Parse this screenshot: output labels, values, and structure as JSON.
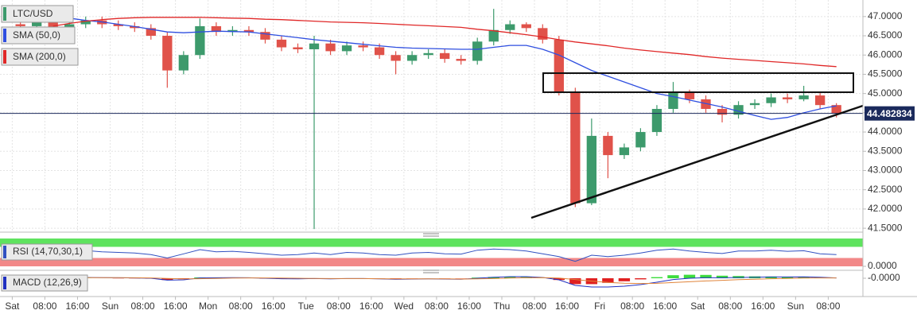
{
  "chart_data": [
    {
      "type": "candlestick",
      "title": "LTC/USD",
      "x": [
        2,
        6,
        10,
        14,
        18,
        22,
        26,
        30,
        34,
        38,
        42,
        46,
        50,
        54,
        58,
        62,
        66,
        70,
        74,
        78,
        82,
        86,
        90,
        94,
        98,
        102,
        106,
        110,
        114,
        118,
        122,
        126,
        130,
        134,
        138,
        142,
        146,
        150,
        154,
        158,
        162,
        166,
        170,
        174,
        178,
        182,
        186,
        190,
        194,
        198,
        202
      ],
      "open": [
        46.8,
        46.75,
        46.85,
        46.7,
        46.8,
        46.9,
        46.8,
        46.75,
        46.7,
        46.5,
        45.6,
        46.0,
        46.75,
        46.6,
        46.65,
        46.6,
        46.4,
        46.2,
        46.15,
        46.3,
        46.1,
        46.25,
        46.2,
        46.0,
        45.85,
        46.0,
        46.05,
        45.9,
        45.85,
        46.35,
        46.65,
        46.8,
        46.7,
        46.4,
        45.05,
        42.15,
        43.9,
        43.4,
        43.6,
        44.0,
        44.6,
        45.05,
        44.85,
        44.6,
        44.45,
        44.7,
        44.75,
        44.9,
        44.85,
        44.95,
        44.7
      ],
      "high": [
        46.9,
        46.95,
        46.95,
        46.85,
        47.0,
        47.0,
        46.9,
        46.85,
        46.8,
        46.6,
        46.1,
        46.95,
        46.85,
        46.75,
        46.75,
        46.7,
        46.5,
        46.3,
        46.5,
        46.4,
        46.35,
        46.35,
        46.3,
        46.1,
        46.1,
        46.15,
        46.15,
        46.0,
        46.45,
        47.2,
        46.9,
        46.85,
        46.8,
        46.5,
        45.15,
        44.35,
        44.0,
        43.7,
        44.1,
        44.7,
        45.3,
        45.1,
        44.95,
        44.7,
        44.8,
        44.85,
        45.0,
        45.0,
        45.2,
        45.05,
        44.75
      ],
      "low": [
        46.65,
        46.65,
        46.6,
        46.6,
        46.7,
        46.7,
        46.65,
        46.6,
        46.4,
        45.15,
        45.5,
        45.9,
        46.5,
        46.5,
        46.5,
        46.3,
        46.1,
        46.05,
        41.48,
        46.0,
        46.0,
        46.1,
        45.9,
        45.5,
        45.75,
        45.9,
        45.8,
        45.75,
        45.75,
        46.25,
        46.55,
        46.6,
        46.3,
        44.95,
        42.05,
        42.1,
        42.8,
        43.3,
        43.5,
        43.9,
        44.5,
        44.75,
        44.5,
        44.25,
        44.35,
        44.6,
        44.65,
        44.75,
        44.8,
        44.6,
        44.38
      ],
      "close": [
        46.75,
        46.85,
        46.7,
        46.8,
        46.9,
        46.8,
        46.75,
        46.7,
        46.5,
        45.6,
        46.0,
        46.75,
        46.6,
        46.65,
        46.6,
        46.4,
        46.2,
        46.15,
        46.3,
        46.1,
        46.25,
        46.2,
        46.0,
        45.85,
        46.0,
        46.05,
        45.9,
        45.85,
        46.35,
        46.65,
        46.8,
        46.7,
        46.4,
        45.05,
        42.15,
        43.9,
        43.4,
        43.6,
        44.0,
        44.6,
        45.05,
        44.85,
        44.6,
        44.45,
        44.7,
        44.75,
        44.9,
        44.85,
        44.95,
        44.7,
        44.48
      ],
      "up_color": "#3d9a6c",
      "down_color": "#e0524a",
      "title_color": "#3d9a6c",
      "overlays": [
        {
          "name": "SMA (50,0)",
          "color": "#2f4fe0",
          "values": [
            47.15,
            47.08,
            47.02,
            46.96,
            46.9,
            46.86,
            46.8,
            46.74,
            46.67,
            46.6,
            46.58,
            46.6,
            46.62,
            46.61,
            46.6,
            46.55,
            46.5,
            46.45,
            46.4,
            46.36,
            46.32,
            46.28,
            46.24,
            46.2,
            46.18,
            46.17,
            46.16,
            46.15,
            46.15,
            46.2,
            46.25,
            46.25,
            46.15,
            46.0,
            45.8,
            45.6,
            45.45,
            45.3,
            45.15,
            45.0,
            44.92,
            44.83,
            44.74,
            44.65,
            44.54,
            44.43,
            44.33,
            44.38,
            44.5,
            44.6,
            44.68
          ]
        },
        {
          "name": "SMA (200,0)",
          "color": "#e02828",
          "values": [
            null,
            null,
            46.75,
            46.82,
            46.88,
            46.92,
            46.95,
            46.97,
            46.98,
            46.98,
            46.98,
            46.98,
            46.97,
            46.96,
            46.95,
            46.93,
            46.92,
            46.9,
            46.88,
            46.86,
            46.85,
            46.84,
            46.82,
            46.8,
            46.78,
            46.76,
            46.74,
            46.72,
            46.67,
            46.63,
            46.58,
            46.53,
            46.47,
            46.4,
            46.34,
            46.29,
            46.24,
            46.18,
            46.13,
            46.09,
            46.05,
            46.01,
            45.96,
            45.92,
            45.89,
            45.86,
            45.83,
            45.8,
            45.77,
            45.73,
            45.7
          ]
        }
      ],
      "last_price": 44.482834,
      "last_price_color": "#1b2a5c",
      "xlim": [
        -3,
        208.5
      ],
      "xticks": [
        {
          "value": 0,
          "label": "Sat"
        },
        {
          "value": 8,
          "label": "08:00"
        },
        {
          "value": 16,
          "label": "16:00"
        },
        {
          "value": 24,
          "label": "Sun"
        },
        {
          "value": 32,
          "label": "08:00"
        },
        {
          "value": 40,
          "label": "16:00"
        },
        {
          "value": 48,
          "label": "Mon"
        },
        {
          "value": 56,
          "label": "08:00"
        },
        {
          "value": 64,
          "label": "16:00"
        },
        {
          "value": 72,
          "label": "Tue"
        },
        {
          "value": 80,
          "label": "08:00"
        },
        {
          "value": 88,
          "label": "16:00"
        },
        {
          "value": 96,
          "label": "Wed"
        },
        {
          "value": 104,
          "label": "08:00"
        },
        {
          "value": 112,
          "label": "16:00"
        },
        {
          "value": 120,
          "label": "Thu"
        },
        {
          "value": 128,
          "label": "08:00"
        },
        {
          "value": 136,
          "label": "16:00"
        },
        {
          "value": 144,
          "label": "Fri"
        },
        {
          "value": 152,
          "label": "08:00"
        },
        {
          "value": 160,
          "label": "16:00"
        },
        {
          "value": 168,
          "label": "Sat"
        },
        {
          "value": 176,
          "label": "08:00"
        },
        {
          "value": 184,
          "label": "16:00"
        },
        {
          "value": 192,
          "label": "Sun"
        },
        {
          "value": 200,
          "label": "08:00"
        }
      ],
      "ylim": [
        41.44,
        47.43
      ],
      "yticks": [
        {
          "value": 41.5,
          "label": "41.5000"
        },
        {
          "value": 42,
          "label": "42.0000"
        },
        {
          "value": 42.5,
          "label": "42.5000"
        },
        {
          "value": 43,
          "label": "43.0000"
        },
        {
          "value": 43.5,
          "label": "43.5000"
        },
        {
          "value": 44,
          "label": "44.0000"
        },
        {
          "value": 44.5,
          "label": "44.5000"
        },
        {
          "value": 45,
          "label": "45.0000"
        },
        {
          "value": 45.5,
          "label": "45.5000"
        },
        {
          "value": 46,
          "label": "46.0000"
        },
        {
          "value": 46.5,
          "label": "46.5000"
        },
        {
          "value": 47,
          "label": "47.0000"
        }
      ],
      "grid": true,
      "legend": "top-left"
    },
    {
      "type": "line",
      "title": "RSI (14,70,30,1)",
      "values": [
        55,
        58,
        52,
        54,
        57,
        52,
        50,
        48,
        42,
        30,
        45,
        60,
        52,
        54,
        50,
        45,
        40,
        42,
        48,
        42,
        50,
        48,
        42,
        40,
        48,
        50,
        45,
        44,
        58,
        62,
        60,
        55,
        45,
        35,
        18,
        40,
        35,
        40,
        48,
        58,
        62,
        55,
        50,
        46,
        55,
        55,
        58,
        54,
        56,
        45,
        42
      ],
      "color": "#3050c0",
      "upper_band": 70,
      "lower_band": 30,
      "upper_color": "#5ee35e",
      "lower_color": "#f28888",
      "ylim": [
        0,
        100
      ],
      "yticks": [
        {
          "value": 0,
          "label": "0.0000"
        }
      ]
    },
    {
      "type": "macd",
      "title": "MACD (12,26,9)",
      "macd": [
        0.05,
        0.06,
        0.04,
        0.04,
        0.05,
        0.04,
        0.03,
        0.02,
        0,
        -0.12,
        -0.1,
        0.02,
        0.03,
        0.04,
        0.03,
        0,
        -0.03,
        -0.04,
        -0.02,
        -0.04,
        -0.02,
        -0.02,
        -0.04,
        -0.06,
        -0.05,
        -0.04,
        -0.05,
        -0.06,
        0,
        0.06,
        0.1,
        0.1,
        0.05,
        -0.1,
        -0.45,
        -0.55,
        -0.55,
        -0.5,
        -0.4,
        -0.25,
        -0.08,
        0,
        0.04,
        0.03,
        0.05,
        0.06,
        0.08,
        0.08,
        0.09,
        0.06,
        0.02
      ],
      "signal": [
        0.04,
        0.05,
        0.05,
        0.04,
        0.04,
        0.04,
        0.04,
        0.03,
        0.02,
        -0.01,
        -0.04,
        -0.03,
        -0.01,
        0.01,
        0.02,
        0.02,
        0.01,
        0,
        -0.01,
        -0.02,
        -0.02,
        -0.02,
        -0.03,
        -0.04,
        -0.04,
        -0.04,
        -0.04,
        -0.05,
        -0.04,
        -0.02,
        0.01,
        0.03,
        0.04,
        0.01,
        -0.08,
        -0.18,
        -0.26,
        -0.31,
        -0.33,
        -0.32,
        -0.27,
        -0.22,
        -0.17,
        -0.13,
        -0.09,
        -0.06,
        -0.03,
        -0.01,
        0.01,
        0.02,
        0.02
      ],
      "histogram": [
        0.01,
        0.01,
        -0.01,
        0,
        0.01,
        0,
        -0.01,
        -0.01,
        -0.02,
        -0.11,
        -0.06,
        0.05,
        0.04,
        0.03,
        0.01,
        -0.02,
        -0.04,
        -0.04,
        -0.01,
        -0.02,
        0,
        0,
        -0.01,
        -0.02,
        -0.01,
        0,
        -0.01,
        -0.01,
        0.04,
        0.08,
        0.09,
        0.07,
        0.01,
        -0.11,
        -0.37,
        -0.37,
        -0.29,
        -0.19,
        -0.07,
        0.07,
        0.19,
        0.22,
        0.21,
        0.16,
        0.14,
        0.12,
        0.11,
        0.09,
        0.08,
        0.04,
        0
      ],
      "macd_color": "#2030c0",
      "signal_color": "#e0843a",
      "up_color": "#3ddc3d",
      "down_color": "#e02020",
      "ylim": [
        -0.7,
        0.3
      ],
      "yticks": [
        {
          "value": 0,
          "label": "-0.0000"
        }
      ]
    }
  ]
}
